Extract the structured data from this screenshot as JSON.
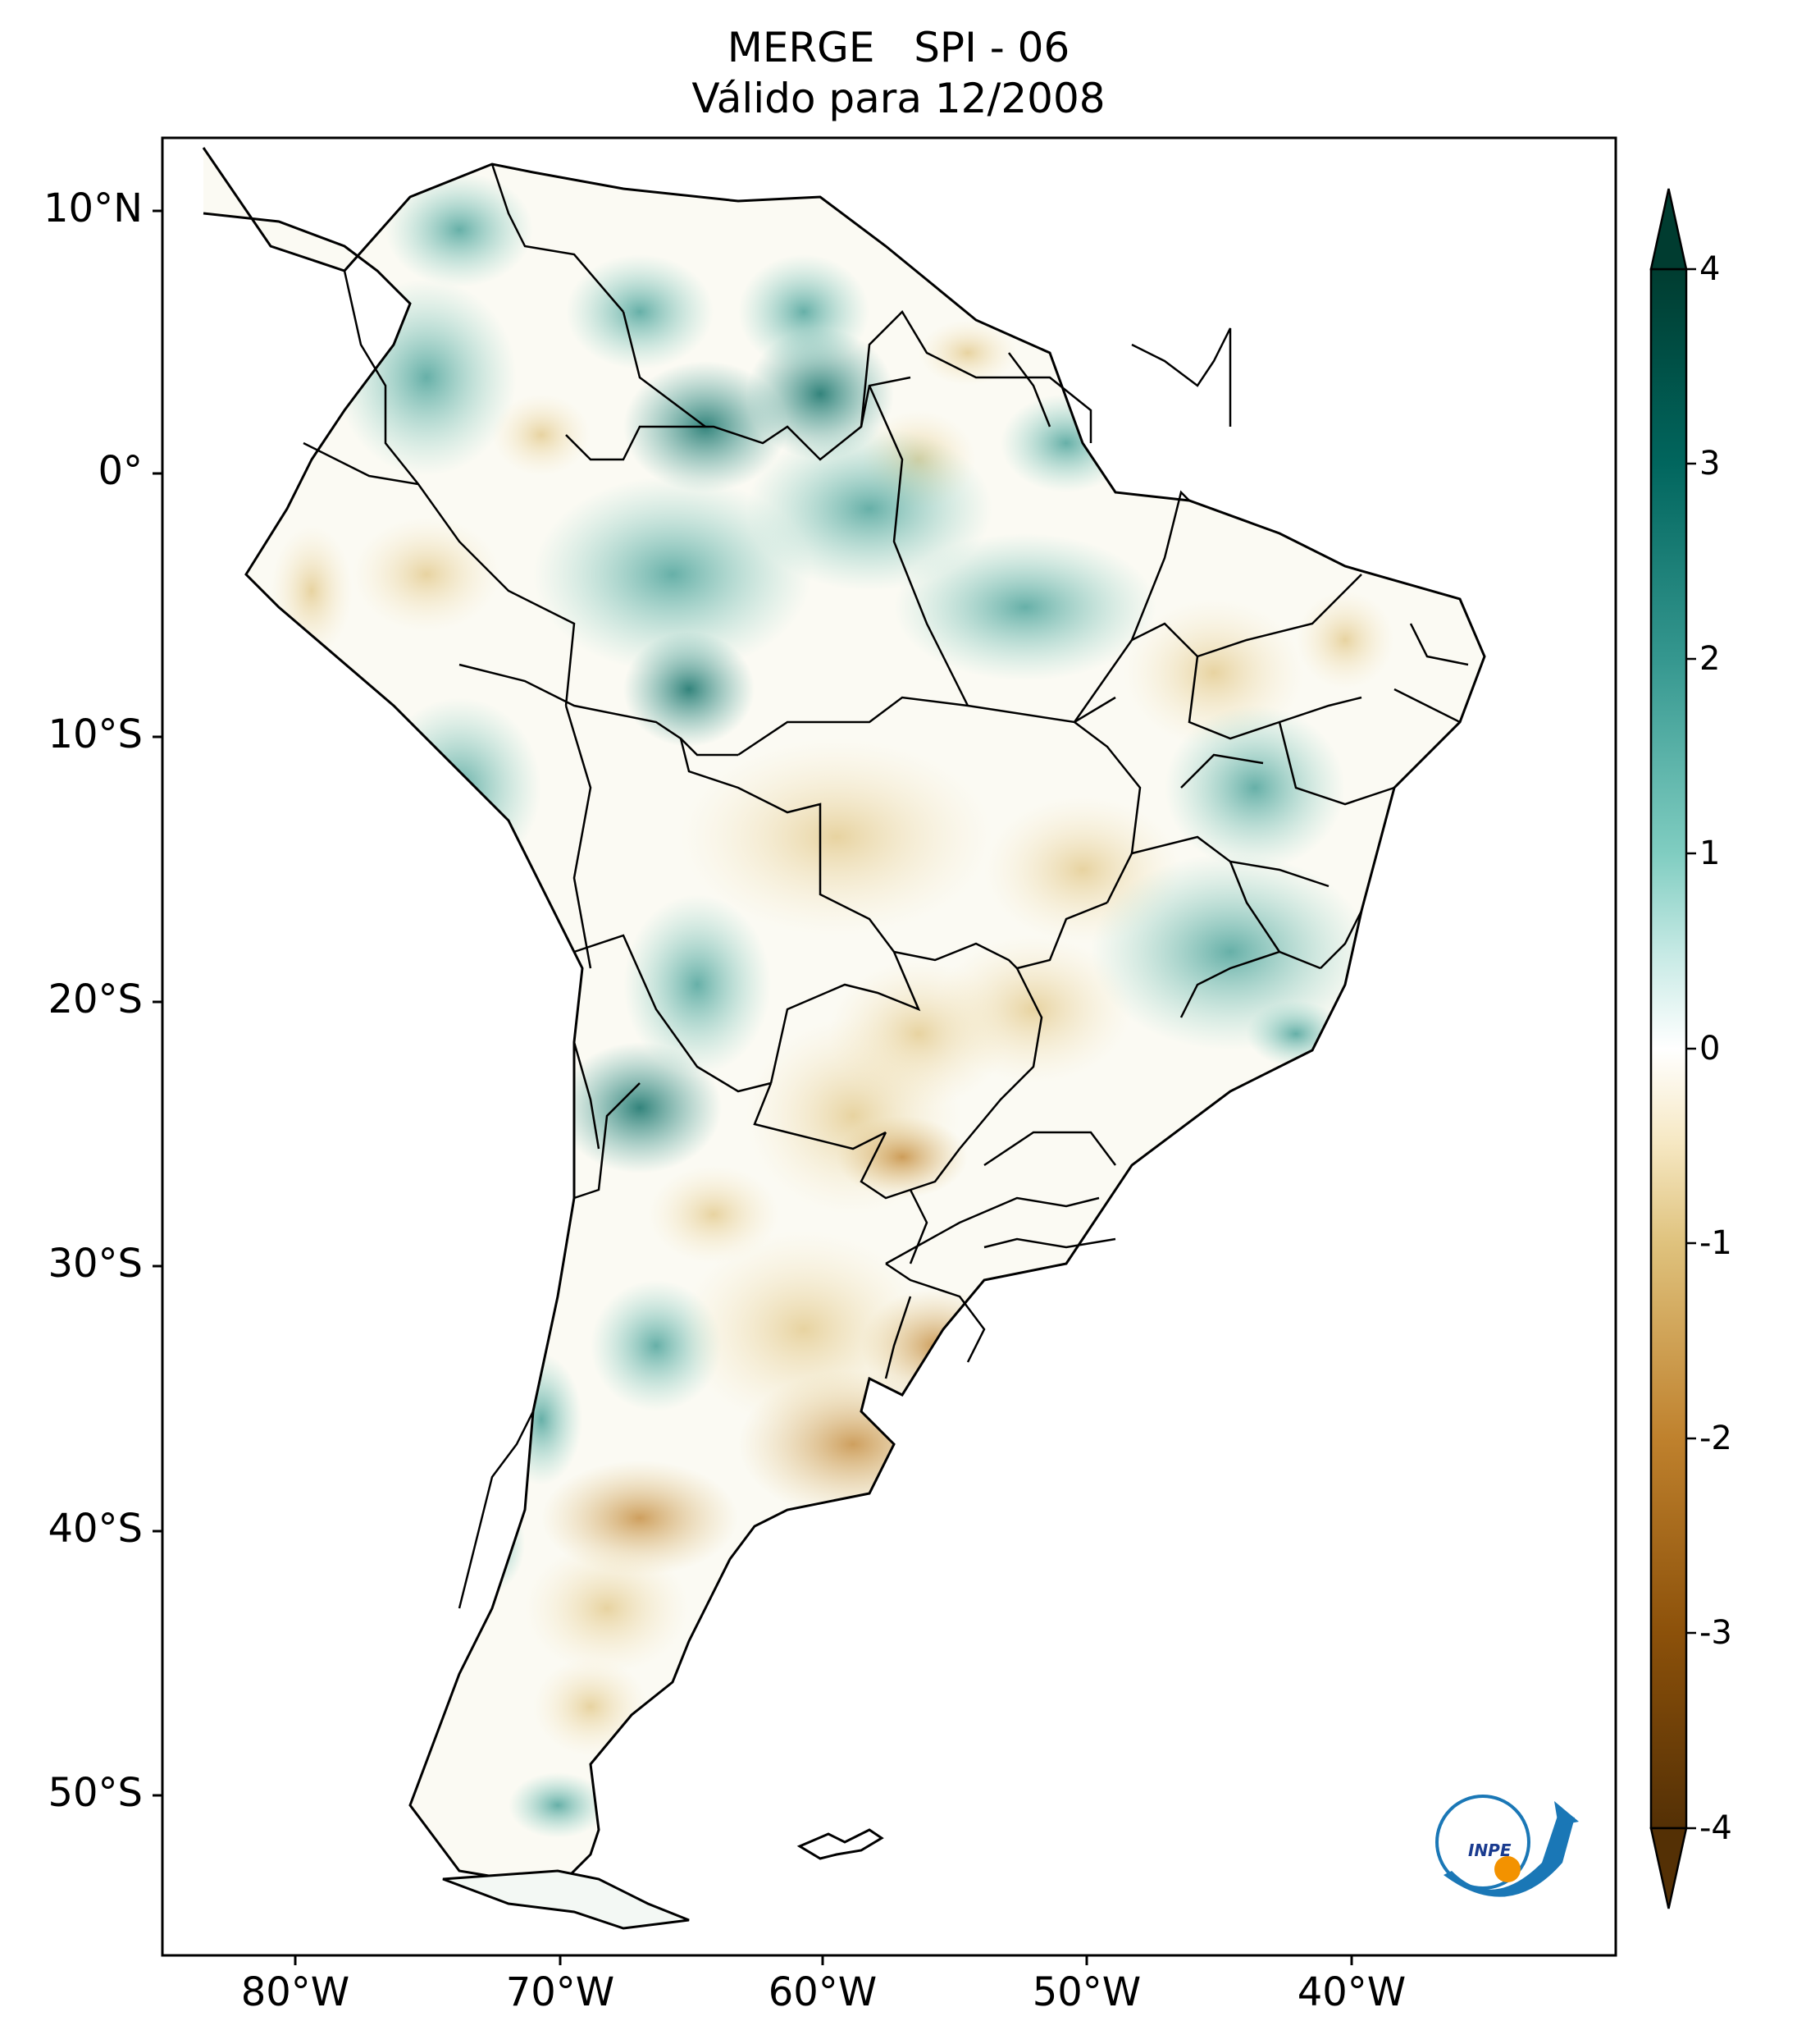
{
  "title": {
    "line1": "MERGE   SPI - 06",
    "line2": "Válido para 12/2008"
  },
  "map": {
    "region": "South America",
    "variable": "SPI - 06",
    "lat_ticks": [
      "10°N",
      "0°",
      "10°S",
      "20°S",
      "30°S",
      "40°S",
      "50°S"
    ],
    "lon_ticks": [
      "80°W",
      "70°W",
      "60°W",
      "50°W",
      "40°W"
    ]
  },
  "colorbar": {
    "ticks": [
      "4",
      "3",
      "2",
      "1",
      "0",
      "-1",
      "-2",
      "-3",
      "-4"
    ],
    "colors": {
      "max": "#003c30",
      "high": "#35978f",
      "mid_high": "#c7eae5",
      "zero": "#ffffff",
      "mid_low": "#f6e8c3",
      "low": "#bf812d",
      "min": "#543005"
    }
  },
  "logo": {
    "text": "INPE"
  }
}
